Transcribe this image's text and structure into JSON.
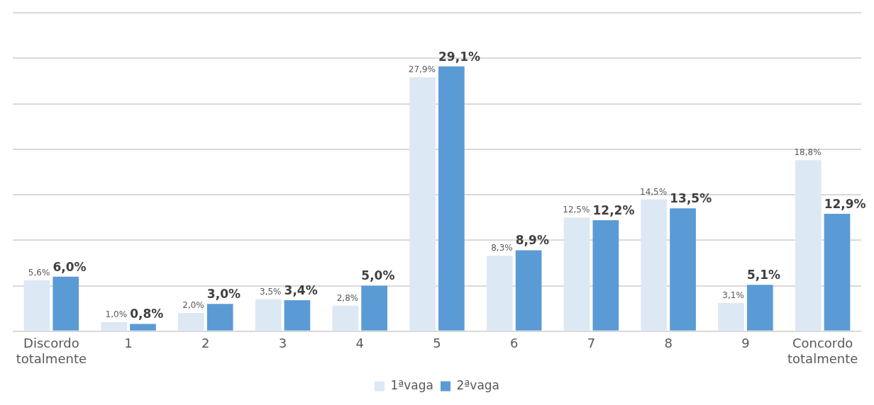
{
  "chart_data": {
    "type": "bar",
    "categories": [
      "Discordo totalmente",
      "1",
      "2",
      "3",
      "4",
      "5",
      "6",
      "7",
      "8",
      "9",
      "Concordo totalmente"
    ],
    "series": [
      {
        "name": "1ªvaga",
        "color": "#dde8f5",
        "values": [
          5.6,
          1.0,
          2.0,
          3.5,
          2.8,
          27.9,
          8.3,
          12.5,
          14.5,
          3.1,
          18.8
        ],
        "value_labels": [
          "5,6%",
          "1,0%",
          "2,0%",
          "3,5%",
          "2,8%",
          "27,9%",
          "8,3%",
          "12,5%",
          "14,5%",
          "3,1%",
          "18,8%"
        ]
      },
      {
        "name": "2ªvaga",
        "color": "#5b9bd5",
        "values": [
          6.0,
          0.8,
          3.0,
          3.4,
          5.0,
          29.1,
          8.9,
          12.2,
          13.5,
          5.1,
          12.9
        ],
        "value_labels": [
          "6,0%",
          "0,8%",
          "3,0%",
          "3,4%",
          "5,0%",
          "29,1%",
          "8,9%",
          "12,2%",
          "13,5%",
          "5,1%",
          "12,9%"
        ]
      }
    ],
    "grid": "y",
    "legend": "bottom"
  }
}
